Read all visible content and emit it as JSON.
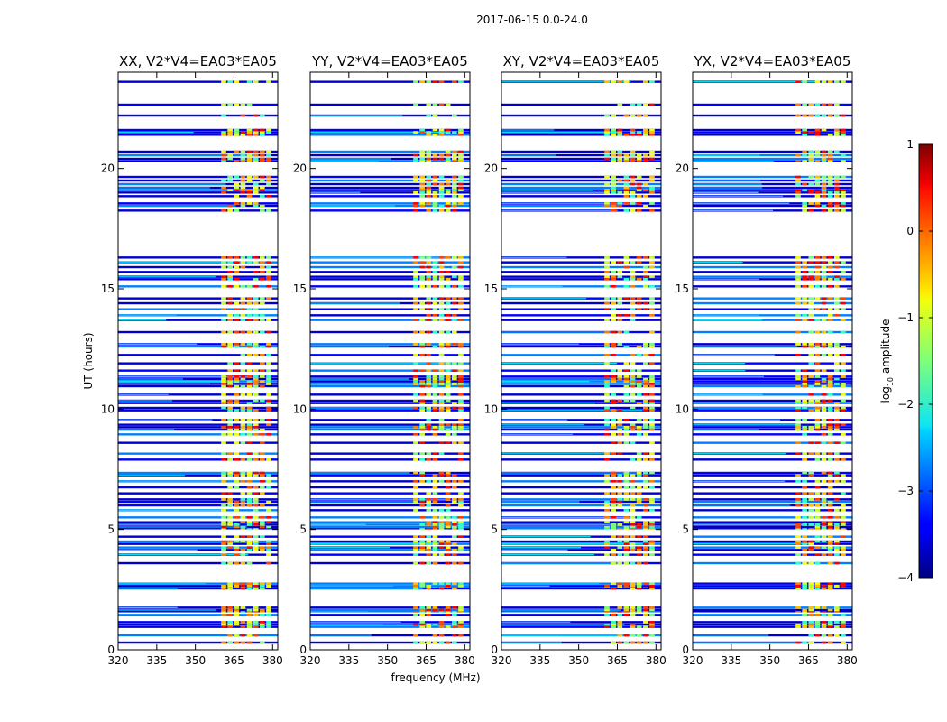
{
  "suptitle": "2017-06-15 0.0-24.0",
  "chart_data": {
    "type": "heatmap",
    "panels": [
      {
        "title": "XX, V2*V4=EA03*EA05"
      },
      {
        "title": "YY, V2*V4=EA03*EA05"
      },
      {
        "title": "XY, V2*V4=EA03*EA05"
      },
      {
        "title": "YX, V2*V4=EA03*EA05"
      }
    ],
    "xlabel": "frequency (MHz)",
    "ylabel": "UT (hours)",
    "xlim": [
      320,
      382
    ],
    "ylim": [
      0,
      24
    ],
    "xticks": [
      "320",
      "335",
      "350",
      "365",
      "380"
    ],
    "xtick_values": [
      320,
      335,
      350,
      365,
      380
    ],
    "yticks": [
      "0",
      "5",
      "10",
      "15",
      "20"
    ],
    "ytick_values": [
      0,
      5,
      10,
      15,
      20
    ],
    "rfi_band_mhz": [
      360,
      380
    ],
    "colorbar": {
      "label": "log10 amplitude",
      "label_base": "log",
      "label_sub": "10",
      "label_rest": " amplitude",
      "range": [
        -4,
        1
      ],
      "ticks": [
        "1",
        "0",
        "−1",
        "−2",
        "−3",
        "−4"
      ],
      "tick_values": [
        1,
        0,
        -1,
        -2,
        -3,
        -4
      ],
      "colormap": "jet"
    },
    "scan_rows_ut_hours": [
      0.3,
      0.6,
      0.95,
      1.05,
      1.15,
      1.45,
      1.6,
      1.65,
      1.75,
      2.55,
      2.6,
      2.65,
      2.75,
      3.6,
      3.95,
      4.15,
      4.25,
      4.4,
      4.5,
      4.7,
      5.05,
      5.1,
      5.2,
      5.3,
      5.5,
      5.8,
      6.0,
      6.15,
      6.25,
      6.5,
      6.75,
      7.0,
      7.25,
      7.35,
      7.9,
      8.15,
      8.6,
      8.95,
      9.15,
      9.25,
      9.35,
      9.55,
      9.95,
      10.05,
      10.25,
      10.35,
      10.6,
      10.95,
      11.05,
      11.15,
      11.25,
      11.35,
      11.6,
      11.9,
      12.25,
      12.6,
      12.7,
      13.2,
      13.7,
      13.9,
      14.15,
      14.4,
      14.6,
      15.1,
      15.4,
      15.5,
      15.7,
      15.9,
      16.1,
      16.3,
      18.25,
      18.45,
      18.55,
      18.85,
      19.0,
      19.1,
      19.2,
      19.35,
      19.5,
      19.65,
      20.3,
      20.4,
      20.55,
      20.7,
      21.4,
      21.5,
      21.6,
      22.2,
      22.65,
      23.6
    ]
  }
}
